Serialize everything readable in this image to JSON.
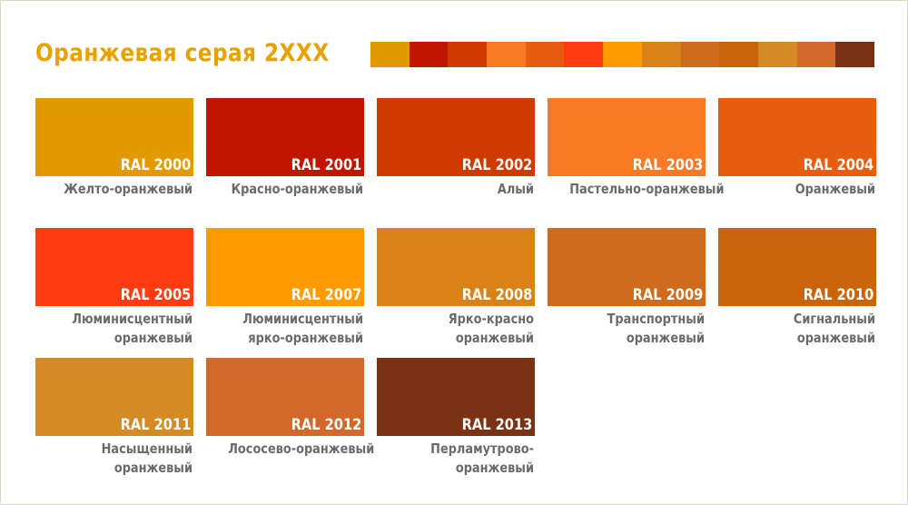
{
  "page_title": "Оранжевая серая 2XXX",
  "strip_colors": [
    "#e39a00",
    "#c21500",
    "#cf3a00",
    "#f87a24",
    "#e85c10",
    "#ff3b12",
    "#ff9b00",
    "#d98218",
    "#cf6b1c",
    "#c9640b",
    "#d48a25",
    "#d2692a",
    "#7b3113"
  ],
  "colors": [
    {
      "code": "RAL 2000",
      "name": [
        "Желто-оранжевый"
      ],
      "hex": "#e39a00"
    },
    {
      "code": "RAL 2001",
      "name": [
        "Красно-оранжевый"
      ],
      "hex": "#c21500"
    },
    {
      "code": "RAL 2002",
      "name": [
        "Алый"
      ],
      "hex": "#cf3a00"
    },
    {
      "code": "RAL 2003",
      "name": [
        "Пастельно-оранжевый"
      ],
      "hex": "#f87a24"
    },
    {
      "code": "RAL 2004",
      "name": [
        "Оранжевый"
      ],
      "hex": "#e85c10"
    },
    {
      "code": "RAL 2005",
      "name": [
        "Люминисцентный",
        "оранжевый"
      ],
      "hex": "#ff3b12"
    },
    {
      "code": "RAL 2007",
      "name": [
        "Люминисцентный",
        "ярко-оранжевый"
      ],
      "hex": "#ff9b00"
    },
    {
      "code": "RAL 2008",
      "name": [
        "Ярко-красно",
        "оранжевый"
      ],
      "hex": "#d98218"
    },
    {
      "code": "RAL 2009",
      "name": [
        "Транспортный",
        "оранжевый"
      ],
      "hex": "#cf6b1c"
    },
    {
      "code": "RAL 2010",
      "name": [
        "Сигнальный",
        "оранжевый"
      ],
      "hex": "#c9640b"
    },
    {
      "code": "RAL 2011",
      "name": [
        "Насыщенный",
        "оранжевый"
      ],
      "hex": "#d48a25"
    },
    {
      "code": "RAL 2012",
      "name": [
        "Лососево-оранжевый"
      ],
      "hex": "#d2692a"
    },
    {
      "code": "RAL 2013",
      "name": [
        "Перламутрово-",
        "оранжевый"
      ],
      "hex": "#7b3113"
    }
  ]
}
